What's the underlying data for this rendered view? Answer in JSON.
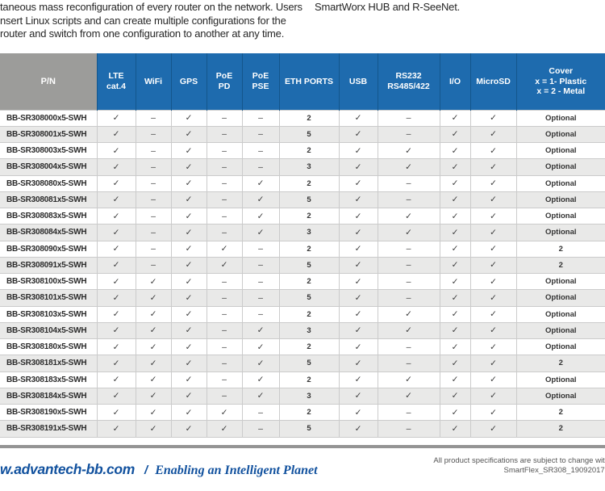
{
  "intro": {
    "left_lines": [
      "taneous mass reconfiguration of every router on the network. Users",
      "nsert Linux scripts and can create multiple configurations for the",
      "router and switch from one configuration to another at any time."
    ],
    "right_line": "SmartWorx HUB and R-SeeNet."
  },
  "table": {
    "columns": [
      {
        "id": "pn",
        "lines": [
          "P/N"
        ]
      },
      {
        "id": "lte-cat4",
        "lines": [
          "LTE",
          "cat.4"
        ]
      },
      {
        "id": "wifi",
        "lines": [
          "WiFi"
        ]
      },
      {
        "id": "gps",
        "lines": [
          "GPS"
        ]
      },
      {
        "id": "poe-pd",
        "lines": [
          "PoE",
          "PD"
        ]
      },
      {
        "id": "poe-pse",
        "lines": [
          "PoE",
          "PSE"
        ]
      },
      {
        "id": "eth-ports",
        "lines": [
          "ETH PORTS"
        ]
      },
      {
        "id": "usb",
        "lines": [
          "USB"
        ]
      },
      {
        "id": "rs232-rs485-422",
        "lines": [
          "RS232",
          "RS485/422"
        ]
      },
      {
        "id": "io",
        "lines": [
          "I/O"
        ]
      },
      {
        "id": "microsd",
        "lines": [
          "MicroSD"
        ]
      },
      {
        "id": "cover",
        "lines": [
          "Cover",
          "x = 1- Plastic",
          "x = 2 - Metal"
        ]
      }
    ],
    "symbols": {
      "yes": "✓",
      "no": "–"
    },
    "rows": [
      [
        "BB-SR308000x5-SWH",
        "✓",
        "–",
        "✓",
        "–",
        "–",
        "2",
        "✓",
        "–",
        "✓",
        "✓",
        "Optional"
      ],
      [
        "BB-SR308001x5-SWH",
        "✓",
        "–",
        "✓",
        "–",
        "–",
        "5",
        "✓",
        "–",
        "✓",
        "✓",
        "Optional"
      ],
      [
        "BB-SR308003x5-SWH",
        "✓",
        "–",
        "✓",
        "–",
        "–",
        "2",
        "✓",
        "✓",
        "✓",
        "✓",
        "Optional"
      ],
      [
        "BB-SR308004x5-SWH",
        "✓",
        "–",
        "✓",
        "–",
        "–",
        "3",
        "✓",
        "✓",
        "✓",
        "✓",
        "Optional"
      ],
      [
        "BB-SR308080x5-SWH",
        "✓",
        "–",
        "✓",
        "–",
        "✓",
        "2",
        "✓",
        "–",
        "✓",
        "✓",
        "Optional"
      ],
      [
        "BB-SR308081x5-SWH",
        "✓",
        "–",
        "✓",
        "–",
        "✓",
        "5",
        "✓",
        "–",
        "✓",
        "✓",
        "Optional"
      ],
      [
        "BB-SR308083x5-SWH",
        "✓",
        "–",
        "✓",
        "–",
        "✓",
        "2",
        "✓",
        "✓",
        "✓",
        "✓",
        "Optional"
      ],
      [
        "BB-SR308084x5-SWH",
        "✓",
        "–",
        "✓",
        "–",
        "✓",
        "3",
        "✓",
        "✓",
        "✓",
        "✓",
        "Optional"
      ],
      [
        "BB-SR308090x5-SWH",
        "✓",
        "–",
        "✓",
        "✓",
        "–",
        "2",
        "✓",
        "–",
        "✓",
        "✓",
        "2"
      ],
      [
        "BB-SR308091x5-SWH",
        "✓",
        "–",
        "✓",
        "✓",
        "–",
        "5",
        "✓",
        "–",
        "✓",
        "✓",
        "2"
      ],
      [
        "BB-SR308100x5-SWH",
        "✓",
        "✓",
        "✓",
        "–",
        "–",
        "2",
        "✓",
        "–",
        "✓",
        "✓",
        "Optional"
      ],
      [
        "BB-SR308101x5-SWH",
        "✓",
        "✓",
        "✓",
        "–",
        "–",
        "5",
        "✓",
        "–",
        "✓",
        "✓",
        "Optional"
      ],
      [
        "BB-SR308103x5-SWH",
        "✓",
        "✓",
        "✓",
        "–",
        "–",
        "2",
        "✓",
        "✓",
        "✓",
        "✓",
        "Optional"
      ],
      [
        "BB-SR308104x5-SWH",
        "✓",
        "✓",
        "✓",
        "–",
        "✓",
        "3",
        "✓",
        "✓",
        "✓",
        "✓",
        "Optional"
      ],
      [
        "BB-SR308180x5-SWH",
        "✓",
        "✓",
        "✓",
        "–",
        "✓",
        "2",
        "✓",
        "–",
        "✓",
        "✓",
        "Optional"
      ],
      [
        "BB-SR308181x5-SWH",
        "✓",
        "✓",
        "✓",
        "–",
        "✓",
        "5",
        "✓",
        "–",
        "✓",
        "✓",
        "2"
      ],
      [
        "BB-SR308183x5-SWH",
        "✓",
        "✓",
        "✓",
        "–",
        "✓",
        "2",
        "✓",
        "✓",
        "✓",
        "✓",
        "Optional"
      ],
      [
        "BB-SR308184x5-SWH",
        "✓",
        "✓",
        "✓",
        "–",
        "✓",
        "3",
        "✓",
        "✓",
        "✓",
        "✓",
        "Optional"
      ],
      [
        "BB-SR308190x5-SWH",
        "✓",
        "✓",
        "✓",
        "✓",
        "–",
        "2",
        "✓",
        "–",
        "✓",
        "✓",
        "2"
      ],
      [
        "BB-SR308191x5-SWH",
        "✓",
        "✓",
        "✓",
        "✓",
        "–",
        "5",
        "✓",
        "–",
        "✓",
        "✓",
        "2"
      ]
    ]
  },
  "footer": {
    "domain": "w.advantech-bb.com",
    "separator": "/",
    "slogan": "Enabling an Intelligent Planet",
    "right_line1": "All product specifications are subject to change with",
    "right_line2": "SmartFlex_SR308_19092017d"
  },
  "colors": {
    "header_blue": "#1E6BAE",
    "header_gray": "#9C9C9A",
    "row_alt_gray": "#E9E9E8",
    "footer_blue": "#11519E",
    "rule_gray": "#949494"
  }
}
